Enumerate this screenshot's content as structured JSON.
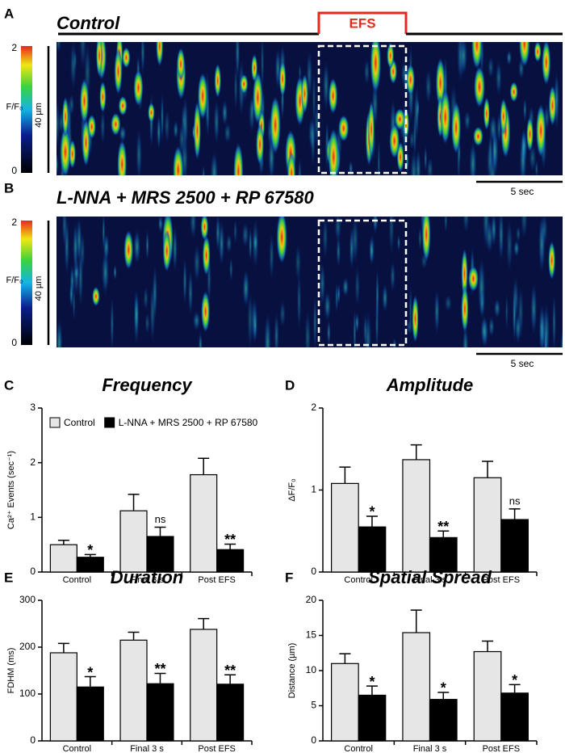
{
  "images": [
    {
      "panel": "A",
      "title": "Control",
      "stimulus": "EFS",
      "cbar_ticks": [
        0,
        2
      ],
      "cbar_label": "F/F₀",
      "length_label": "40 µm",
      "time_label": "5 sec"
    },
    {
      "panel": "B",
      "title": "L-NNA + MRS 2500 + RP 67580",
      "cbar_ticks": [
        0,
        2
      ],
      "cbar_label": "F/F₀",
      "length_label": "40 µm",
      "time_label": "5 sec"
    }
  ],
  "chart_data": [
    {
      "type": "bar",
      "panel": "C",
      "title": "Frequency",
      "ylabel": "Ca²⁺ Events (sec⁻¹)",
      "categories": [
        "Control",
        "Final 3 s",
        "Post EFS"
      ],
      "ylim": [
        0,
        3
      ],
      "yticks": [
        0,
        1,
        2,
        3
      ],
      "legend": "top-left",
      "series": [
        {
          "name": "Control",
          "color": "#e6e6e6",
          "values": [
            0.5,
            1.12,
            1.78
          ],
          "errors": [
            0.08,
            0.3,
            0.3
          ]
        },
        {
          "name": "L-NNA + MRS 2500 + RP 67580",
          "color": "#000000",
          "values": [
            0.27,
            0.65,
            0.41
          ],
          "errors": [
            0.05,
            0.17,
            0.1
          ]
        }
      ],
      "annotations": [
        "*",
        "ns",
        "**"
      ]
    },
    {
      "type": "bar",
      "panel": "D",
      "title": "Amplitude",
      "ylabel": "ΔF/F₀",
      "categories": [
        "Control",
        "Final 3 s",
        "Post EFS"
      ],
      "ylim": [
        0,
        2
      ],
      "yticks": [
        0,
        1,
        2
      ],
      "series": [
        {
          "color": "#e6e6e6",
          "values": [
            1.08,
            1.37,
            1.15
          ],
          "errors": [
            0.2,
            0.18,
            0.2
          ]
        },
        {
          "color": "#000000",
          "values": [
            0.55,
            0.42,
            0.64
          ],
          "errors": [
            0.13,
            0.08,
            0.13
          ]
        }
      ],
      "annotations": [
        "*",
        "**",
        "ns"
      ]
    },
    {
      "type": "bar",
      "panel": "E",
      "title": "Duration",
      "ylabel": "FDHM (ms)",
      "categories": [
        "Control",
        "Final 3 s",
        "Post EFS"
      ],
      "ylim": [
        0,
        300
      ],
      "yticks": [
        0,
        100,
        200,
        300
      ],
      "series": [
        {
          "color": "#e6e6e6",
          "values": [
            188,
            215,
            238
          ],
          "errors": [
            20,
            17,
            23
          ]
        },
        {
          "color": "#000000",
          "values": [
            115,
            122,
            121
          ],
          "errors": [
            22,
            22,
            20
          ]
        }
      ],
      "annotations": [
        "*",
        "**",
        "**"
      ]
    },
    {
      "type": "bar",
      "panel": "F",
      "title": "Spatial Spread",
      "ylabel": "Distance (µm)",
      "categories": [
        "Control",
        "Final 3 s",
        "Post EFS"
      ],
      "ylim": [
        0,
        20
      ],
      "yticks": [
        0,
        5,
        10,
        15,
        20
      ],
      "series": [
        {
          "color": "#e6e6e6",
          "values": [
            11,
            15.4,
            12.7
          ],
          "errors": [
            1.4,
            3.2,
            1.5
          ]
        },
        {
          "color": "#000000",
          "values": [
            6.5,
            5.9,
            6.8
          ],
          "errors": [
            1.3,
            1.0,
            1.2
          ]
        }
      ],
      "annotations": [
        "*",
        "*",
        "*"
      ]
    }
  ]
}
